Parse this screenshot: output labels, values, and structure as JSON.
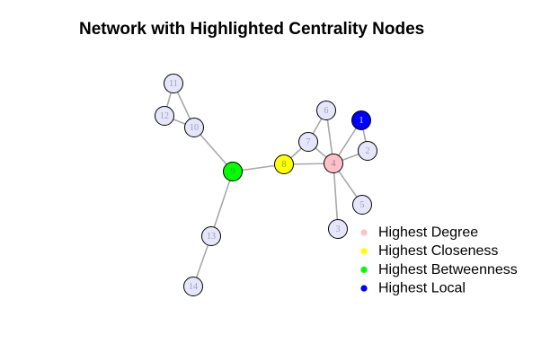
{
  "title": "Network with Highlighted Centrality Nodes",
  "colors": {
    "default_node": "#e6e6fa",
    "default_label": "#a0a0b4",
    "edge": "#a8a8a8",
    "degree": "#ffc0cb",
    "closeness": "#ffff00",
    "betweenness": "#00ff00",
    "local": "#0000ff"
  },
  "nodes": [
    {
      "id": "1",
      "role": "local"
    },
    {
      "id": "2",
      "role": "default"
    },
    {
      "id": "3",
      "role": "default"
    },
    {
      "id": "4",
      "role": "degree"
    },
    {
      "id": "5",
      "role": "default"
    },
    {
      "id": "6",
      "role": "default"
    },
    {
      "id": "7",
      "role": "default"
    },
    {
      "id": "8",
      "role": "closeness"
    },
    {
      "id": "9",
      "role": "betweenness"
    },
    {
      "id": "10",
      "role": "default"
    },
    {
      "id": "11",
      "role": "default"
    },
    {
      "id": "12",
      "role": "default"
    },
    {
      "id": "13",
      "role": "default"
    },
    {
      "id": "14",
      "role": "default"
    }
  ],
  "edges": [
    [
      "1",
      "2"
    ],
    [
      "1",
      "4"
    ],
    [
      "2",
      "4"
    ],
    [
      "4",
      "3"
    ],
    [
      "4",
      "5"
    ],
    [
      "4",
      "6"
    ],
    [
      "4",
      "7"
    ],
    [
      "4",
      "8"
    ],
    [
      "6",
      "7"
    ],
    [
      "7",
      "8"
    ],
    [
      "8",
      "9"
    ],
    [
      "9",
      "10"
    ],
    [
      "9",
      "13"
    ],
    [
      "10",
      "11"
    ],
    [
      "10",
      "12"
    ],
    [
      "11",
      "12"
    ],
    [
      "13",
      "14"
    ]
  ],
  "legend": [
    {
      "label": "Highest Degree",
      "role": "degree"
    },
    {
      "label": "Highest Closeness",
      "role": "closeness"
    },
    {
      "label": "Highest Betweenness",
      "role": "betweenness"
    },
    {
      "label": "Highest Local",
      "role": "local"
    }
  ]
}
